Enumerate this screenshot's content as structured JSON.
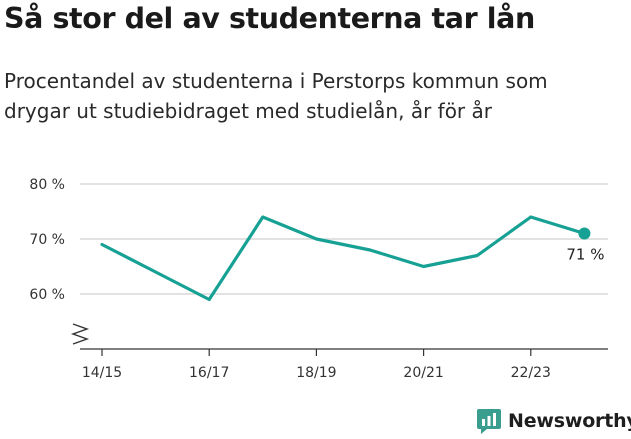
{
  "header": {
    "title": "Så stor del av studenterna tar lån",
    "subtitle_line1": "Procentandel av studenterna i Perstorps kommun som",
    "subtitle_line2": "drygar ut studiebidraget med studielån, år för år"
  },
  "colors": {
    "line": "#17a194",
    "grid": "#d9d9d9",
    "axis": "#333333",
    "brand": "#3a9e8f"
  },
  "chart_data": {
    "type": "line",
    "x": [
      "14/15",
      "15/16",
      "16/17",
      "17/18",
      "18/19",
      "19/20",
      "20/21",
      "21/22",
      "22/23",
      "23/24"
    ],
    "values": [
      69,
      64,
      59,
      74,
      70,
      68,
      65,
      67,
      74,
      71
    ],
    "x_tick_labels": [
      "14/15",
      "16/17",
      "18/19",
      "20/21",
      "22/23"
    ],
    "y_ticks": [
      60,
      70,
      80
    ],
    "y_tick_labels": [
      "60 %",
      "70 %",
      "80 %"
    ],
    "ylim": [
      50,
      80
    ],
    "y_axis_break": true,
    "grid": "horizontal",
    "end_label": "71 %"
  },
  "brand": {
    "name": "Newsworthy",
    "icon": "newsworthy-logo-icon"
  }
}
